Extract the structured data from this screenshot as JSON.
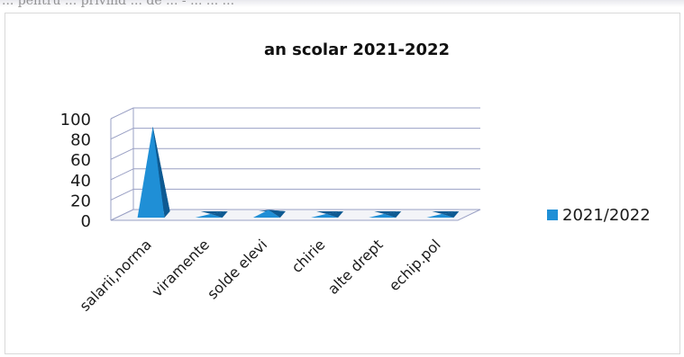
{
  "scan_header": "... pentru ... privind ... de ... - ... ... ...",
  "chart_data": {
    "type": "bar",
    "title": "an scolar 2021-2022",
    "categories": [
      "salarii,norma",
      "viramente",
      "solde elevi",
      "chirie",
      "alte drept",
      "echip.pol"
    ],
    "series": [
      {
        "name": "2021/2022",
        "values": [
          87,
          1,
          5,
          1,
          1,
          1
        ]
      }
    ],
    "ylim": [
      0,
      100
    ],
    "yticks": [
      "0",
      "20",
      "40",
      "60",
      "80",
      "100"
    ],
    "xlabel": "",
    "ylabel": "",
    "grid": true,
    "legend_position": "right",
    "colors": {
      "series": "#1f8fd6",
      "series_dark": "#0e5a92",
      "grid": "#9aa0c4"
    }
  }
}
